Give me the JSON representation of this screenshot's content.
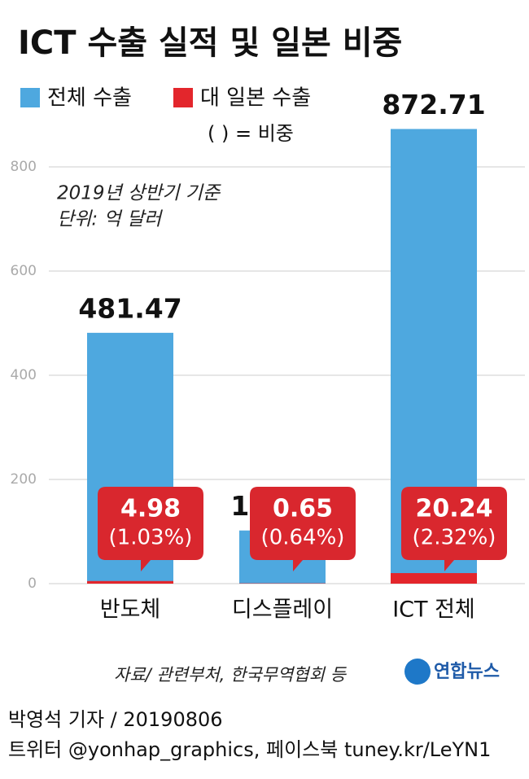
{
  "chart_data": {
    "type": "bar",
    "title": "ICT 수출 실적 및 일본 비중",
    "categories": [
      "반도체",
      "디스플레이",
      "ICT 전체"
    ],
    "series": [
      {
        "name": "전체 수출",
        "color": "#4ea8df",
        "values": [
          481.47,
          102.03,
          872.71
        ]
      },
      {
        "name": "대 일본 수출",
        "color": "#e3262c",
        "values": [
          4.98,
          0.65,
          20.24
        ],
        "share_labels": [
          "(1.03%)",
          "(0.64%)",
          "(2.32%)"
        ]
      }
    ],
    "note": "(   ) = 비중",
    "annotations": [
      "2019년 상반기 기준",
      "단위: 억 달러"
    ],
    "ylim": [
      0,
      900
    ],
    "yticks": [
      0,
      200,
      400,
      600,
      800
    ],
    "grid": true,
    "source": "자료/ 관련부처, 한국무역협회 등",
    "logo": "연합뉴스",
    "footer": [
      "박영석 기자 /  20190806",
      "트위터 @yonhap_graphics, 페이스북 tuney.kr/LeYN1"
    ]
  }
}
